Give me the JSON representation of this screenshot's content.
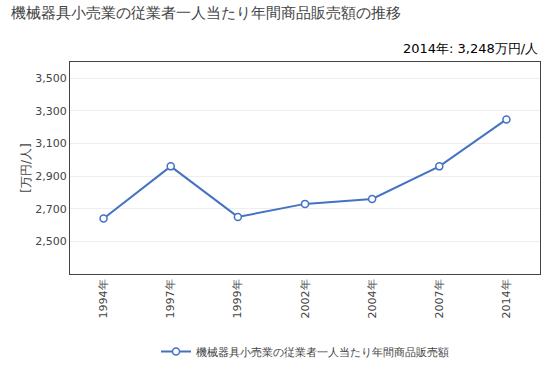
{
  "chart_data": {
    "type": "line",
    "title": "機械器具小売業の従業者一人当たり年間商品販売額の推移",
    "ylabel": "[万円/人]",
    "annotations": [
      "2014年: 3,248万円/人"
    ],
    "categories": [
      "1994年",
      "1997年",
      "1999年",
      "2002年",
      "2004年",
      "2007年",
      "2014年"
    ],
    "series": [
      {
        "name": "機械器具小売業の従業者一人当たり年間商品販売額",
        "color": "#4472C4",
        "marker": "circle",
        "values": [
          2640,
          2960,
          2650,
          2730,
          2760,
          2960,
          3248
        ]
      }
    ],
    "ylim": [
      2300,
      3600
    ],
    "yticks": [
      {
        "value": 2500,
        "label": "2,500"
      },
      {
        "value": 2700,
        "label": "2,700"
      },
      {
        "value": 2900,
        "label": "2,900"
      },
      {
        "value": 3100,
        "label": "3,100"
      },
      {
        "value": 3300,
        "label": "3,300"
      },
      {
        "value": 3500,
        "label": "3,500"
      }
    ],
    "grid": true,
    "legend": "bottom"
  }
}
